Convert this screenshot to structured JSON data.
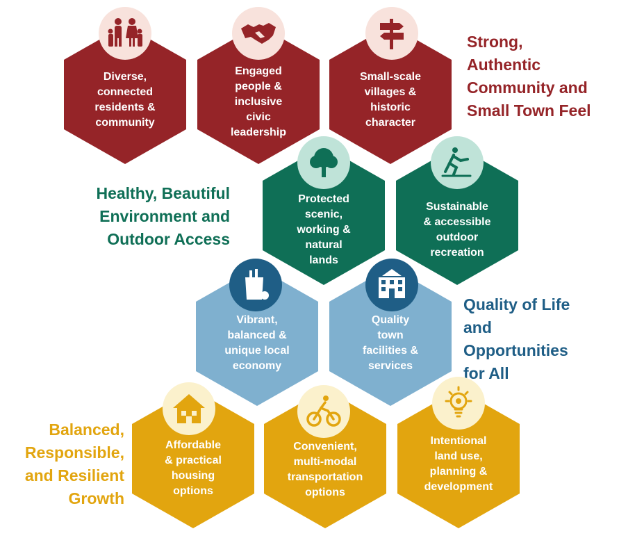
{
  "themes": {
    "community": "Strong,\nAuthentic\nCommunity and\nSmall Town Feel",
    "environment": "Healthy, Beautiful\nEnvironment and\nOutdoor Access",
    "quality": "Quality of Life\nand\nOpportunities\nfor All",
    "growth": "Balanced,\nResponsible,\nand Resilient\nGrowth"
  },
  "hexes": {
    "diverse": "Diverse,\nconnected\nresidents &\ncommunity",
    "engaged": "Engaged\npeople &\ninclusive\ncivic\nleadership",
    "villages": "Small-scale\nvillages &\nhistoric\ncharacter",
    "lands": "Protected\nscenic,\nworking &\nnatural\nlands",
    "recreation": "Sustainable\n& accessible\noutdoor\nrecreation",
    "economy": "Vibrant,\nbalanced &\nunique local\neconomy",
    "facilities": "Quality\ntown\nfacilities &\nservices",
    "housing": "Affordable\n& practical\nhousing\noptions",
    "transportation": "Convenient,\nmulti-modal\ntransportation\noptions",
    "landuse": "Intentional\nland use,\nplanning &\ndevelopment"
  },
  "colors": {
    "red": "#952428",
    "green": "#0f6f56",
    "blue": "#7fb0cf",
    "dark_blue": "#1f5e86",
    "gold": "#e2a50f"
  },
  "icons": {
    "diverse": "family-icon",
    "engaged": "handshake-icon",
    "villages": "signpost-icon",
    "lands": "tree-icon",
    "recreation": "skier-icon",
    "economy": "grocery-bag-icon",
    "facilities": "building-icon",
    "housing": "house-icon",
    "transportation": "cyclist-icon",
    "landuse": "lightbulb-icon"
  }
}
